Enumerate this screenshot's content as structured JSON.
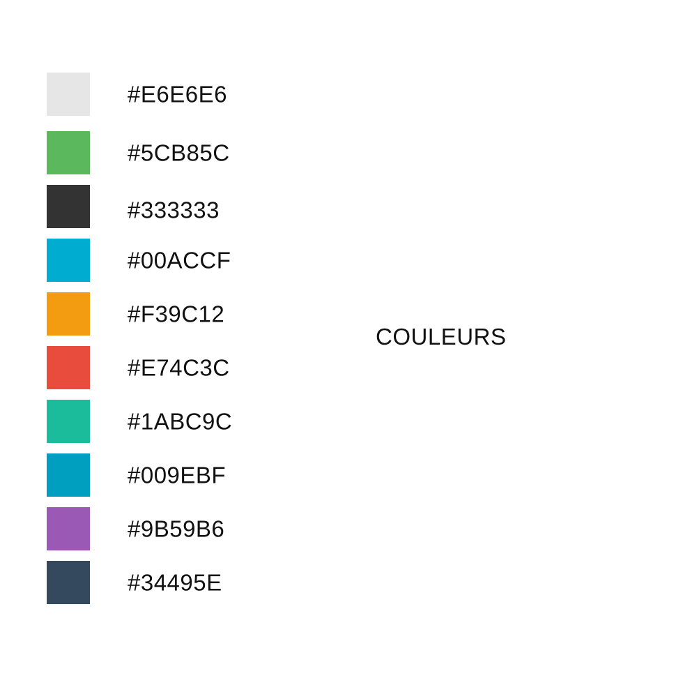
{
  "title": "COULEURS",
  "palette": [
    {
      "hex": "#E6E6E6",
      "label": "#E6E6E6"
    },
    {
      "hex": "#5CB85C",
      "label": "#5CB85C"
    },
    {
      "hex": "#333333",
      "label": "#333333"
    },
    {
      "hex": "#00ACCF",
      "label": "#00ACCF"
    },
    {
      "hex": "#F39C12",
      "label": "#F39C12"
    },
    {
      "hex": "#E74C3C",
      "label": "#E74C3C"
    },
    {
      "hex": "#1ABC9C",
      "label": "#1ABC9C"
    },
    {
      "hex": "#009EBF",
      "label": "#009EBF"
    },
    {
      "hex": "#9B59B6",
      "label": "#9B59B6"
    },
    {
      "hex": "#34495E",
      "label": "#34495E"
    }
  ]
}
